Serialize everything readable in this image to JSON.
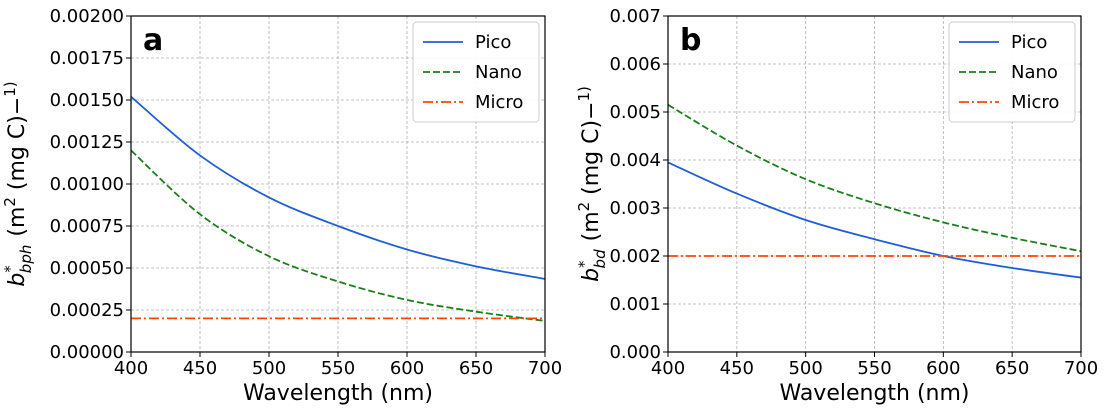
{
  "chart_data": [
    {
      "type": "line",
      "panel_label": "a",
      "xlabel": "Wavelength (nm)",
      "ylabel": {
        "main": "b",
        "sup": "*",
        "sub": "bph",
        "units": "(m2 (mg C)−1)"
      },
      "xlim": [
        400,
        700
      ],
      "ylim": [
        0,
        0.002
      ],
      "xticks": [
        400,
        450,
        500,
        550,
        600,
        650,
        700
      ],
      "xtick_labels": [
        "400",
        "450",
        "500",
        "550",
        "600",
        "650",
        "700"
      ],
      "yticks": [
        0,
        0.00025,
        0.0005,
        0.00075,
        0.001,
        0.00125,
        0.0015,
        0.00175,
        0.002
      ],
      "ytick_labels": [
        "0.00000",
        "0.00025",
        "0.00050",
        "0.00075",
        "0.00100",
        "0.00125",
        "0.00150",
        "0.00175",
        "0.00200"
      ],
      "grid": true,
      "legend": "top-right",
      "x": [
        400,
        450,
        500,
        550,
        600,
        650,
        700
      ],
      "series": [
        {
          "name": "Pico",
          "color": "#1f5fd6",
          "style": "solid",
          "values": [
            0.00152,
            0.00117,
            0.00092,
            0.00075,
            0.00061,
            0.00051,
            0.000435
          ]
        },
        {
          "name": "Nano",
          "color": "#1a7f1a",
          "style": "dashed",
          "values": [
            0.0012,
            0.00082,
            0.00057,
            0.00042,
            0.00031,
            0.00024,
            0.000185
          ]
        },
        {
          "name": "Micro",
          "color": "#ff4500",
          "style": "dashdot",
          "values": [
            0.0002,
            0.0002,
            0.0002,
            0.0002,
            0.0002,
            0.0002,
            0.0002
          ]
        }
      ]
    },
    {
      "type": "line",
      "panel_label": "b",
      "xlabel": "Wavelength (nm)",
      "ylabel": {
        "main": "b",
        "sup": "*",
        "sub": "bd",
        "units": "(m2 (mg C)−1)"
      },
      "xlim": [
        400,
        700
      ],
      "ylim": [
        0,
        0.007
      ],
      "xticks": [
        400,
        450,
        500,
        550,
        600,
        650,
        700
      ],
      "xtick_labels": [
        "400",
        "450",
        "500",
        "550",
        "600",
        "650",
        "700"
      ],
      "yticks": [
        0,
        0.001,
        0.002,
        0.003,
        0.004,
        0.005,
        0.006,
        0.007
      ],
      "ytick_labels": [
        "0.000",
        "0.001",
        "0.002",
        "0.003",
        "0.004",
        "0.005",
        "0.006",
        "0.007"
      ],
      "grid": true,
      "legend": "top-right",
      "x": [
        400,
        450,
        500,
        550,
        600,
        650,
        700
      ],
      "series": [
        {
          "name": "Pico",
          "color": "#1f5fd6",
          "style": "solid",
          "values": [
            0.00395,
            0.0033,
            0.00275,
            0.00235,
            0.002,
            0.00175,
            0.00155
          ]
        },
        {
          "name": "Nano",
          "color": "#1a7f1a",
          "style": "dashed",
          "values": [
            0.00515,
            0.0043,
            0.0036,
            0.0031,
            0.0027,
            0.00238,
            0.0021
          ]
        },
        {
          "name": "Micro",
          "color": "#ff4500",
          "style": "dashdot",
          "values": [
            0.002,
            0.002,
            0.002,
            0.002,
            0.002,
            0.002,
            0.002
          ]
        }
      ]
    }
  ]
}
